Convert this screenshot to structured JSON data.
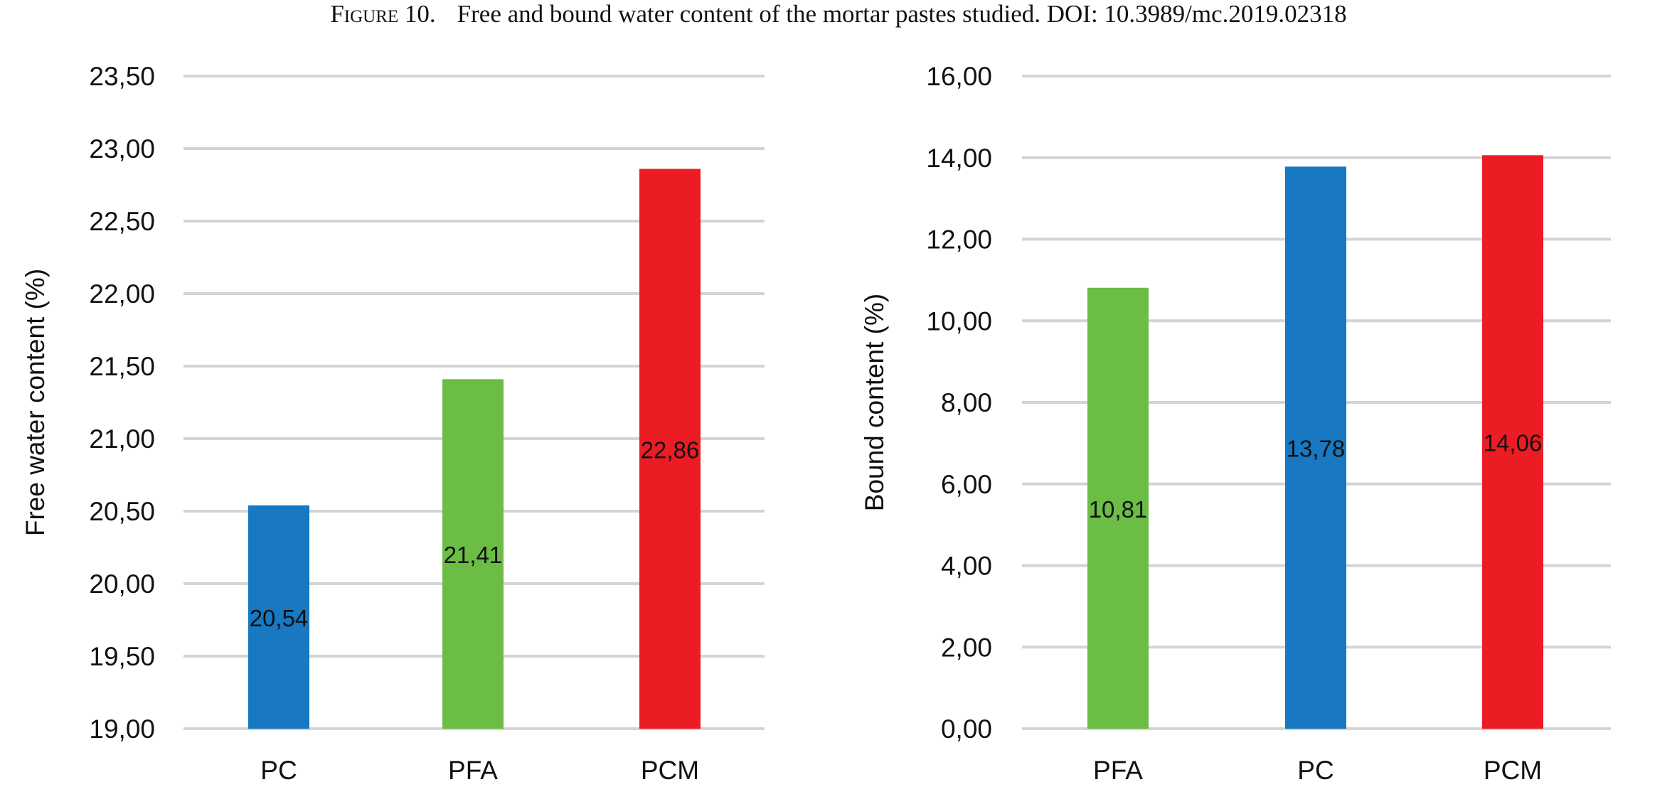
{
  "figure": {
    "caption_lead": "Figure 10.",
    "caption_text": "Free and bound water content of the mortar pastes studied. DOI: 10.3989/mc.2019.02318"
  },
  "colors": {
    "blue": "#1878c1",
    "green": "#6bbd45",
    "red": "#ec1c24",
    "grid": "#d4d4d4",
    "text": "#111111"
  },
  "chart_data": [
    {
      "type": "bar",
      "title": "",
      "xlabel": "",
      "ylabel": "Free water content (%)",
      "categories": [
        "PC",
        "PFA",
        "PCM"
      ],
      "values": [
        20.54,
        21.41,
        22.86
      ],
      "value_labels": [
        "20,54",
        "21,41",
        "22,86"
      ],
      "bar_colors": [
        "#1878c1",
        "#6bbd45",
        "#ec1c24"
      ],
      "ylim": [
        19.0,
        23.5
      ],
      "yticks": [
        19.0,
        19.5,
        20.0,
        20.5,
        21.0,
        21.5,
        22.0,
        22.5,
        23.0,
        23.5
      ],
      "ytick_labels": [
        "19,00",
        "19,50",
        "20,00",
        "20,50",
        "21,00",
        "21,50",
        "22,00",
        "22,50",
        "23,00",
        "23,50"
      ],
      "grid": true,
      "legend": "none"
    },
    {
      "type": "bar",
      "title": "",
      "xlabel": "",
      "ylabel": "Bound content (%)",
      "categories": [
        "PFA",
        "PC",
        "PCM"
      ],
      "values": [
        10.81,
        13.78,
        14.06
      ],
      "value_labels": [
        "10,81",
        "13,78",
        "14,06"
      ],
      "bar_colors": [
        "#6bbd45",
        "#1878c1",
        "#ec1c24"
      ],
      "ylim": [
        0,
        16
      ],
      "yticks": [
        0,
        2,
        4,
        6,
        8,
        10,
        12,
        14,
        16
      ],
      "ytick_labels": [
        "0,00",
        "2,00",
        "4,00",
        "6,00",
        "8,00",
        "10,00",
        "12,00",
        "14,00",
        "16,00"
      ],
      "grid": true,
      "legend": "none"
    }
  ]
}
